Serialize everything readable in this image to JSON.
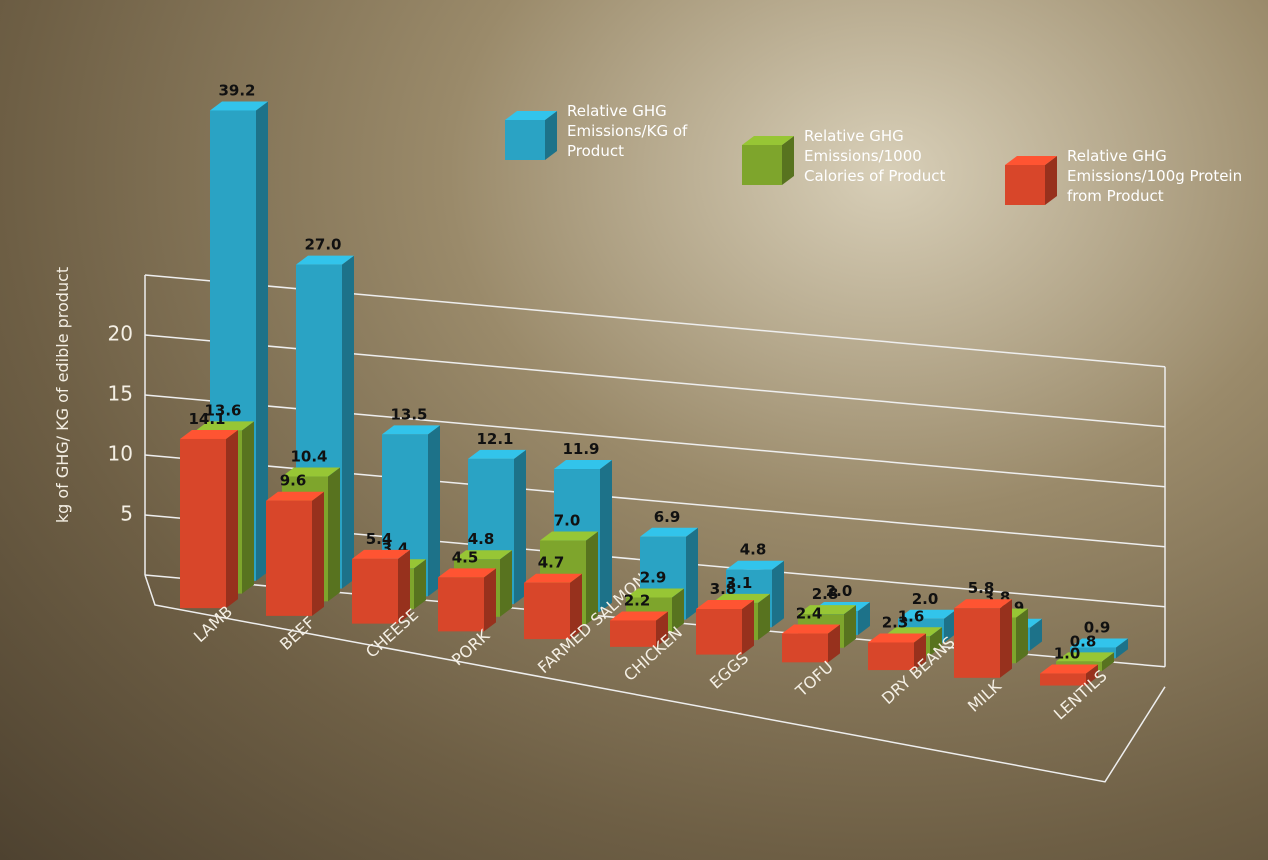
{
  "chart_data": {
    "type": "bar3d",
    "y_label": "kg of GHG/ KG of edible product",
    "categories": [
      "LAMB",
      "BEEF",
      "CHEESE",
      "PORK",
      "FARMED SALMON",
      "CHICKEN",
      "EGGS",
      "TOFU",
      "DRY BEANS",
      "MILK",
      "LENTILS"
    ],
    "series": [
      {
        "name": "Relative GHG Emissions/KG of Product",
        "color": "#2aa3c4",
        "values": [
          39.2,
          27.0,
          13.5,
          12.1,
          11.9,
          6.9,
          4.8,
          2.0,
          2.0,
          1.9,
          0.9
        ],
        "value_labels": [
          "39.2",
          "27.0",
          "13.5",
          "12.1",
          "11.9",
          "6.9",
          "4.8",
          "2.0",
          "2.0",
          "1.9",
          "0.9"
        ]
      },
      {
        "name": "Relative GHG Emissions/1000 Calories of Product",
        "color": "#7ea52c",
        "values": [
          13.6,
          10.4,
          3.4,
          4.8,
          7.0,
          2.9,
          3.1,
          2.8,
          1.6,
          3.8,
          0.8
        ],
        "value_labels": [
          "13.6",
          "10.4",
          "3.4",
          "4.8",
          "7.0",
          "2.9",
          "3.1",
          "2.8",
          "1.6",
          "3.8",
          "0.8"
        ]
      },
      {
        "name": "Relative GHG Emissions/100g Protein from Product",
        "color": "#d8462a",
        "values": [
          14.1,
          9.6,
          5.4,
          4.5,
          4.7,
          2.2,
          3.8,
          2.4,
          2.3,
          5.8,
          1.0
        ],
        "value_labels": [
          "14.1",
          "9.6",
          "5.4",
          "4.5",
          "4.7",
          "2.2",
          "3.8",
          "2.4",
          "2.3",
          "5.8",
          "1.0"
        ]
      }
    ],
    "ylim": [
      0,
      25
    ],
    "yticks": [
      5,
      10,
      15,
      20
    ],
    "grid": true
  }
}
